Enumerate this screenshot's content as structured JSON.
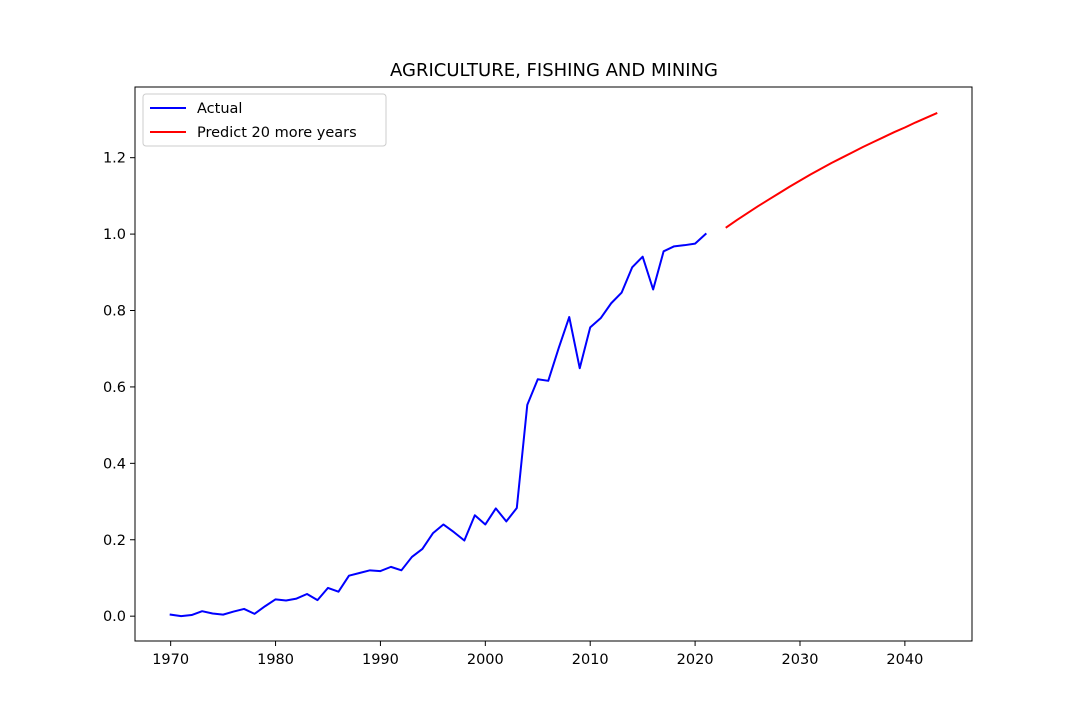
{
  "chart_data": {
    "type": "line",
    "title": "AGRICULTURE, FISHING AND MINING",
    "xlabel": "",
    "ylabel": "",
    "xlim": [
      1966.6,
      2046.4
    ],
    "ylim": [
      -0.065,
      1.385
    ],
    "xticks": [
      1970,
      1980,
      1990,
      2000,
      2010,
      2020,
      2030,
      2040
    ],
    "yticks": [
      0.0,
      0.2,
      0.4,
      0.6,
      0.8,
      1.0,
      1.2
    ],
    "ytick_labels": [
      "0.0",
      "0.2",
      "0.4",
      "0.6",
      "0.8",
      "1.0",
      "1.2"
    ],
    "legend_position": "top-left",
    "grid": false,
    "series": [
      {
        "name": "Actual",
        "color": "#0000ff",
        "x": [
          1970,
          1971,
          1972,
          1973,
          1974,
          1975,
          1976,
          1977,
          1978,
          1979,
          1980,
          1981,
          1982,
          1983,
          1984,
          1985,
          1986,
          1987,
          1988,
          1989,
          1990,
          1991,
          1992,
          1993,
          1994,
          1995,
          1996,
          1997,
          1998,
          1999,
          2000,
          2001,
          2002,
          2003,
          2004,
          2005,
          2006,
          2007,
          2008,
          2009,
          2010,
          2011,
          2012,
          2013,
          2014,
          2015,
          2016,
          2017,
          2018,
          2019,
          2020,
          2021
        ],
        "y": [
          0.004,
          0.0,
          0.003,
          0.013,
          0.007,
          0.004,
          0.012,
          0.019,
          0.006,
          0.026,
          0.044,
          0.041,
          0.046,
          0.058,
          0.042,
          0.074,
          0.064,
          0.106,
          0.113,
          0.12,
          0.118,
          0.129,
          0.12,
          0.155,
          0.176,
          0.217,
          0.24,
          0.22,
          0.198,
          0.264,
          0.24,
          0.282,
          0.248,
          0.283,
          0.553,
          0.62,
          0.616,
          0.702,
          0.783,
          0.649,
          0.756,
          0.78,
          0.819,
          0.847,
          0.913,
          0.941,
          0.855,
          0.955,
          0.968,
          0.971,
          0.975,
          1.0
        ]
      },
      {
        "name": "Predict 20 more years",
        "color": "#ff0000",
        "x": [
          2023,
          2024,
          2025,
          2026,
          2027,
          2028,
          2029,
          2030,
          2031,
          2032,
          2033,
          2034,
          2035,
          2036,
          2037,
          2038,
          2039,
          2040,
          2041,
          2042,
          2043
        ],
        "y": [
          1.018,
          1.037,
          1.055,
          1.073,
          1.09,
          1.107,
          1.124,
          1.14,
          1.156,
          1.171,
          1.186,
          1.2,
          1.214,
          1.228,
          1.241,
          1.254,
          1.267,
          1.279,
          1.292,
          1.304,
          1.316
        ]
      }
    ]
  }
}
